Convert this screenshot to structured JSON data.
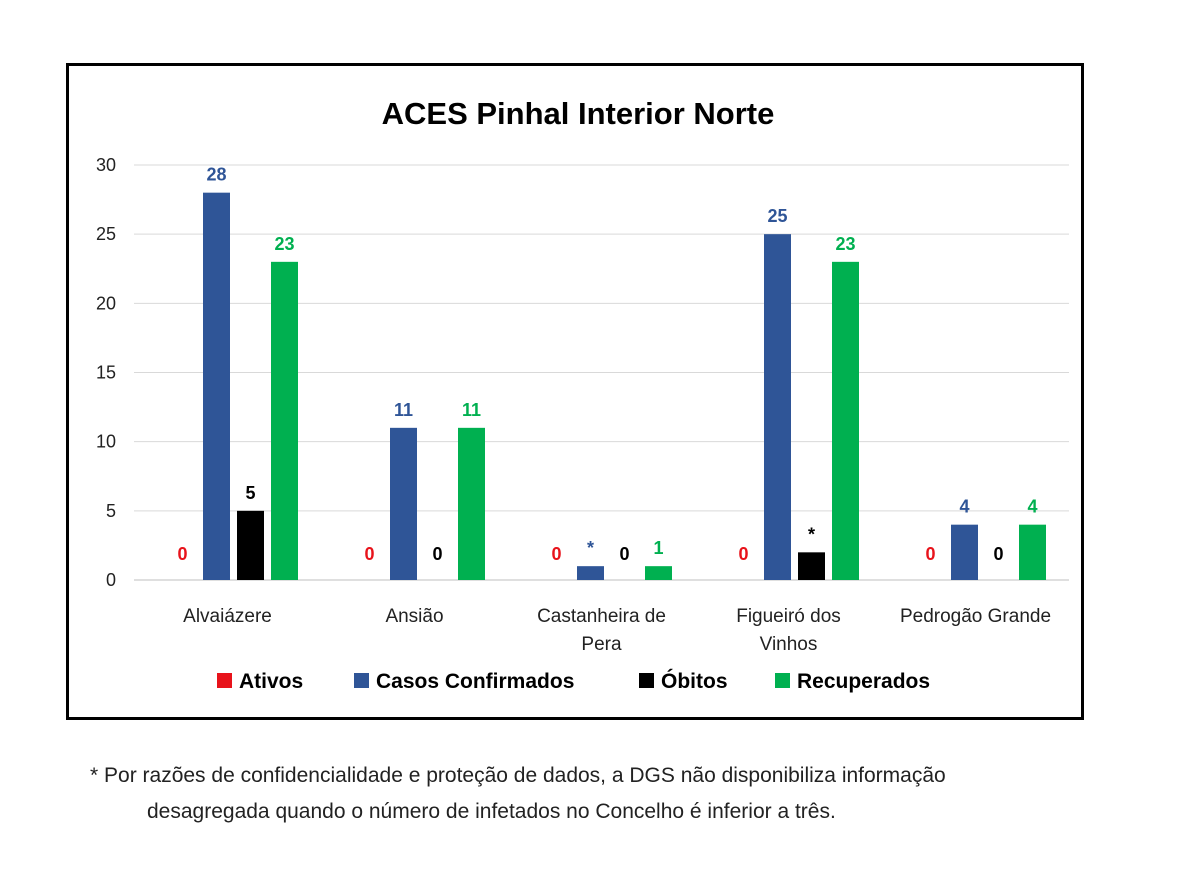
{
  "chart_data": {
    "type": "bar",
    "title": "ACES Pinhal Interior Norte",
    "categories": [
      [
        "Alvaiázere"
      ],
      [
        "Ansião"
      ],
      [
        "Castanheira de",
        "Pera"
      ],
      [
        "Figueiró dos",
        "Vinhos"
      ],
      [
        "Pedrogão Grande"
      ]
    ],
    "ylim": [
      0,
      30
    ],
    "yticks": [
      0,
      5,
      10,
      15,
      20,
      25,
      30
    ],
    "grid": true,
    "legend_position": "bottom",
    "series": [
      {
        "name": "Ativos",
        "color": "#e8131b",
        "values": [
          0,
          0,
          0,
          0,
          0
        ],
        "labels": [
          "0",
          "0",
          "0",
          "0",
          "0"
        ]
      },
      {
        "name": "Casos Confirmados",
        "color": "#2f5597",
        "values": [
          28,
          11,
          1,
          25,
          4
        ],
        "labels": [
          "28",
          "11",
          "*",
          "25",
          "4"
        ]
      },
      {
        "name": "Óbitos",
        "color": "#000000",
        "values": [
          5,
          0,
          0,
          2,
          0
        ],
        "labels": [
          "5",
          "0",
          "0",
          "*",
          "0"
        ]
      },
      {
        "name": "Recuperados",
        "color": "#00b050",
        "values": [
          23,
          11,
          1,
          23,
          4
        ],
        "labels": [
          "23",
          "11",
          "1",
          "23",
          "4"
        ]
      }
    ]
  },
  "footnote": {
    "line1": "* Por razões de confidencialidade e proteção de dados, a DGS não disponibiliza informação",
    "line2": "desagregada quando o número de infetados no Concelho é inferior a três."
  }
}
